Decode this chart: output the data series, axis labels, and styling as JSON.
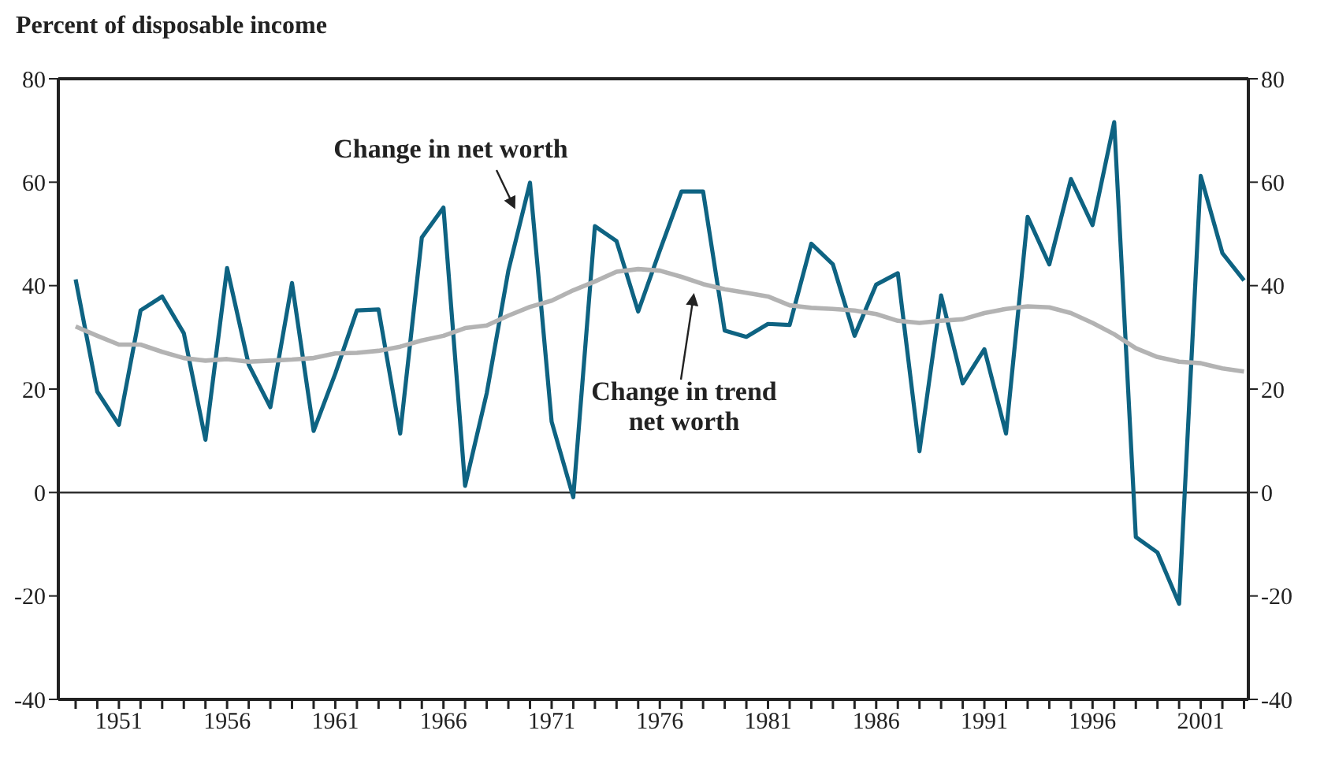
{
  "chart_data": {
    "type": "line",
    "title": "Percent of disposable income",
    "x": [
      1949,
      1950,
      1951,
      1952,
      1953,
      1954,
      1955,
      1956,
      1957,
      1958,
      1959,
      1960,
      1961,
      1962,
      1963,
      1964,
      1965,
      1966,
      1967,
      1968,
      1969,
      1970,
      1971,
      1972,
      1973,
      1974,
      1975,
      1976,
      1977,
      1978,
      1979,
      1980,
      1981,
      1982,
      1983,
      1984,
      1985,
      1986,
      1987,
      1988,
      1989,
      1990,
      1991,
      1992,
      1993,
      1994,
      1995,
      1996,
      1997,
      1998,
      1999,
      2000,
      2001,
      2002,
      2003
    ],
    "series": [
      {
        "name": "Change in net worth",
        "color": "#0e6382",
        "values": [
          41.2,
          19.5,
          13.1,
          35.2,
          37.9,
          30.8,
          10.2,
          43.4,
          24.7,
          16.5,
          40.5,
          11.9,
          23,
          35.2,
          35.4,
          11.4,
          49.3,
          55.1,
          1.3,
          19.2,
          42.9,
          59.9,
          13.7,
          -0.9,
          51.5,
          48.6,
          35,
          46.8,
          58.2,
          58.2,
          31.3,
          30.1,
          32.6,
          32.4,
          48.1,
          44.1,
          30.3,
          40.2,
          42.4,
          8.0,
          38.1,
          21.1,
          27.7,
          11.4,
          53.3,
          44.1,
          60.6,
          51.7,
          71.6,
          -8.6,
          -11.6,
          -21.5,
          61.2,
          46.3,
          41.0
        ]
      },
      {
        "name": "Change in trend net worth",
        "color": "#b3b3b3",
        "values": [
          32.1,
          30.3,
          28.6,
          28.6,
          27.2,
          26,
          25.5,
          25.8,
          25.3,
          25.5,
          25.7,
          26,
          26.9,
          27,
          27.4,
          28.2,
          29.4,
          30.3,
          31.8,
          32.3,
          34.2,
          35.9,
          37.1,
          39.1,
          40.8,
          42.7,
          43.2,
          42.9,
          41.7,
          40.3,
          39.3,
          38.6,
          37.9,
          36.2,
          35.7,
          35.5,
          35.2,
          34.5,
          33.2,
          32.8,
          33.2,
          33.5,
          34.7,
          35.5,
          36,
          35.8,
          34.7,
          32.8,
          30.6,
          27.9,
          26.2,
          25.3,
          25,
          24,
          23.4
        ]
      }
    ],
    "xlim": [
      1948.2,
      2003.2
    ],
    "xticks": [
      {
        "value": 1949,
        "label": null
      },
      {
        "value": 1950,
        "label": null
      },
      1951,
      {
        "value": 1952,
        "label": null
      },
      {
        "value": 1953,
        "label": null
      },
      {
        "value": 1954,
        "label": null
      },
      {
        "value": 1955,
        "label": null
      },
      1956,
      {
        "value": 1957,
        "label": null
      },
      {
        "value": 1958,
        "label": null
      },
      {
        "value": 1959,
        "label": null
      },
      {
        "value": 1960,
        "label": null
      },
      1961,
      {
        "value": 1962,
        "label": null
      },
      {
        "value": 1963,
        "label": null
      },
      {
        "value": 1964,
        "label": null
      },
      {
        "value": 1965,
        "label": null
      },
      1966,
      {
        "value": 1967,
        "label": null
      },
      {
        "value": 1968,
        "label": null
      },
      {
        "value": 1969,
        "label": null
      },
      {
        "value": 1970,
        "label": null
      },
      1971,
      {
        "value": 1972,
        "label": null
      },
      {
        "value": 1973,
        "label": null
      },
      {
        "value": 1974,
        "label": null
      },
      {
        "value": 1975,
        "label": null
      },
      1976,
      {
        "value": 1977,
        "label": null
      },
      {
        "value": 1978,
        "label": null
      },
      {
        "value": 1979,
        "label": null
      },
      {
        "value": 1980,
        "label": null
      },
      1981,
      {
        "value": 1982,
        "label": null
      },
      {
        "value": 1983,
        "label": null
      },
      {
        "value": 1984,
        "label": null
      },
      {
        "value": 1985,
        "label": null
      },
      1986,
      {
        "value": 1987,
        "label": null
      },
      {
        "value": 1988,
        "label": null
      },
      {
        "value": 1989,
        "label": null
      },
      {
        "value": 1990,
        "label": null
      },
      1991,
      {
        "value": 1992,
        "label": null
      },
      {
        "value": 1993,
        "label": null
      },
      {
        "value": 1994,
        "label": null
      },
      {
        "value": 1995,
        "label": null
      },
      1996,
      {
        "value": 1997,
        "label": null
      },
      {
        "value": 1998,
        "label": null
      },
      {
        "value": 1999,
        "label": null
      },
      {
        "value": 2000,
        "label": null
      },
      2001,
      {
        "value": 2002,
        "label": null
      },
      {
        "value": 2003,
        "label": null
      }
    ],
    "ylim": [
      -40,
      80
    ],
    "yticks": [
      -40,
      -20,
      0,
      20,
      40,
      60,
      80
    ],
    "y2lim": [
      -40,
      80
    ],
    "y2ticks": [
      -40,
      -20,
      0,
      20,
      40,
      60,
      80
    ],
    "ref_lines": [
      {
        "axis": "y",
        "value": 0,
        "color": "#222222"
      }
    ],
    "grid": false,
    "marker": "none",
    "line_style": "solid"
  }
}
